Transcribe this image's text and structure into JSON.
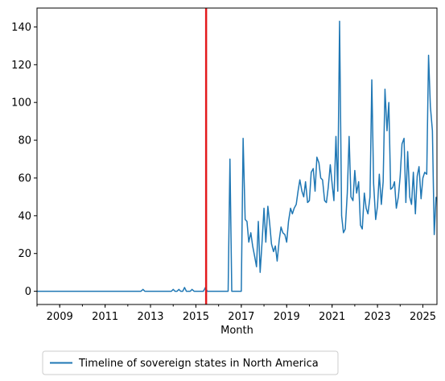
{
  "chart_data": {
    "type": "line",
    "title": "",
    "xlabel": "Month",
    "ylabel": "",
    "xlim": [
      2008.0,
      2025.62
    ],
    "ylim": [
      -7,
      150
    ],
    "x_ticks": [
      {
        "value": 2009,
        "label": "2009"
      },
      {
        "value": 2011,
        "label": "2011"
      },
      {
        "value": 2013,
        "label": "2013"
      },
      {
        "value": 2015,
        "label": "2015"
      },
      {
        "value": 2017,
        "label": "2017"
      },
      {
        "value": 2019,
        "label": "2019"
      },
      {
        "value": 2021,
        "label": "2021"
      },
      {
        "value": 2023,
        "label": "2023"
      },
      {
        "value": 2025,
        "label": "2025"
      }
    ],
    "y_ticks": [
      {
        "value": 0,
        "label": "0"
      },
      {
        "value": 20,
        "label": "20"
      },
      {
        "value": 40,
        "label": "40"
      },
      {
        "value": 60,
        "label": "60"
      },
      {
        "value": 80,
        "label": "80"
      },
      {
        "value": 100,
        "label": "100"
      },
      {
        "value": 120,
        "label": "120"
      },
      {
        "value": 140,
        "label": "140"
      }
    ],
    "vline": {
      "x": 2015.45,
      "color": "#e31a1c"
    },
    "legend_position": "below",
    "grid": false,
    "series": [
      {
        "name": "Timeline of sovereign states in North America",
        "color": "#1f77b4",
        "points": [
          [
            2008.0,
            0
          ],
          [
            2012.58,
            0
          ],
          [
            2012.67,
            1
          ],
          [
            2012.75,
            0
          ],
          [
            2013.92,
            0
          ],
          [
            2014.0,
            1
          ],
          [
            2014.08,
            0
          ],
          [
            2014.17,
            0
          ],
          [
            2014.25,
            1
          ],
          [
            2014.33,
            0
          ],
          [
            2014.42,
            0
          ],
          [
            2014.5,
            2
          ],
          [
            2014.58,
            0
          ],
          [
            2014.75,
            0
          ],
          [
            2014.83,
            1
          ],
          [
            2014.92,
            0
          ],
          [
            2015.33,
            0
          ],
          [
            2015.42,
            2
          ],
          [
            2015.5,
            0
          ],
          [
            2016.42,
            0
          ],
          [
            2016.5,
            70
          ],
          [
            2016.58,
            0
          ],
          [
            2017.0,
            0
          ],
          [
            2017.08,
            81
          ],
          [
            2017.17,
            38
          ],
          [
            2017.25,
            37
          ],
          [
            2017.33,
            26
          ],
          [
            2017.42,
            31
          ],
          [
            2017.5,
            24
          ],
          [
            2017.58,
            19
          ],
          [
            2017.67,
            13
          ],
          [
            2017.75,
            37
          ],
          [
            2017.83,
            10
          ],
          [
            2017.92,
            27
          ],
          [
            2018.0,
            44
          ],
          [
            2018.08,
            26
          ],
          [
            2018.17,
            45
          ],
          [
            2018.25,
            36
          ],
          [
            2018.33,
            25
          ],
          [
            2018.42,
            21
          ],
          [
            2018.5,
            24
          ],
          [
            2018.58,
            16
          ],
          [
            2018.67,
            27
          ],
          [
            2018.75,
            34
          ],
          [
            2018.83,
            31
          ],
          [
            2018.92,
            30
          ],
          [
            2019.0,
            26
          ],
          [
            2019.08,
            37
          ],
          [
            2019.17,
            44
          ],
          [
            2019.25,
            41
          ],
          [
            2019.33,
            44
          ],
          [
            2019.42,
            46
          ],
          [
            2019.5,
            53
          ],
          [
            2019.58,
            59
          ],
          [
            2019.67,
            53
          ],
          [
            2019.75,
            50
          ],
          [
            2019.83,
            58
          ],
          [
            2019.92,
            47
          ],
          [
            2020.0,
            48
          ],
          [
            2020.08,
            63
          ],
          [
            2020.17,
            65
          ],
          [
            2020.25,
            53
          ],
          [
            2020.33,
            71
          ],
          [
            2020.42,
            68
          ],
          [
            2020.5,
            60
          ],
          [
            2020.58,
            59
          ],
          [
            2020.67,
            48
          ],
          [
            2020.75,
            47
          ],
          [
            2020.83,
            55
          ],
          [
            2020.92,
            67
          ],
          [
            2021.0,
            57
          ],
          [
            2021.08,
            48
          ],
          [
            2021.17,
            82
          ],
          [
            2021.25,
            53
          ],
          [
            2021.33,
            143
          ],
          [
            2021.42,
            40
          ],
          [
            2021.5,
            31
          ],
          [
            2021.58,
            33
          ],
          [
            2021.67,
            52
          ],
          [
            2021.75,
            82
          ],
          [
            2021.83,
            50
          ],
          [
            2021.92,
            48
          ],
          [
            2022.0,
            64
          ],
          [
            2022.08,
            52
          ],
          [
            2022.17,
            58
          ],
          [
            2022.25,
            35
          ],
          [
            2022.33,
            33
          ],
          [
            2022.42,
            52
          ],
          [
            2022.5,
            44
          ],
          [
            2022.58,
            41
          ],
          [
            2022.67,
            50
          ],
          [
            2022.75,
            112
          ],
          [
            2022.83,
            57
          ],
          [
            2022.92,
            38
          ],
          [
            2023.0,
            45
          ],
          [
            2023.08,
            62
          ],
          [
            2023.17,
            46
          ],
          [
            2023.25,
            58
          ],
          [
            2023.33,
            107
          ],
          [
            2023.42,
            85
          ],
          [
            2023.5,
            100
          ],
          [
            2023.58,
            54
          ],
          [
            2023.67,
            55
          ],
          [
            2023.75,
            58
          ],
          [
            2023.83,
            44
          ],
          [
            2023.92,
            50
          ],
          [
            2024.0,
            61
          ],
          [
            2024.08,
            78
          ],
          [
            2024.17,
            81
          ],
          [
            2024.25,
            47
          ],
          [
            2024.33,
            74
          ],
          [
            2024.42,
            50
          ],
          [
            2024.5,
            46
          ],
          [
            2024.58,
            63
          ],
          [
            2024.67,
            41
          ],
          [
            2024.75,
            61
          ],
          [
            2024.83,
            66
          ],
          [
            2024.92,
            49
          ],
          [
            2025.0,
            60
          ],
          [
            2025.08,
            63
          ],
          [
            2025.17,
            62
          ],
          [
            2025.25,
            125
          ],
          [
            2025.33,
            98
          ],
          [
            2025.42,
            85
          ],
          [
            2025.5,
            30
          ],
          [
            2025.58,
            50
          ]
        ]
      }
    ]
  }
}
